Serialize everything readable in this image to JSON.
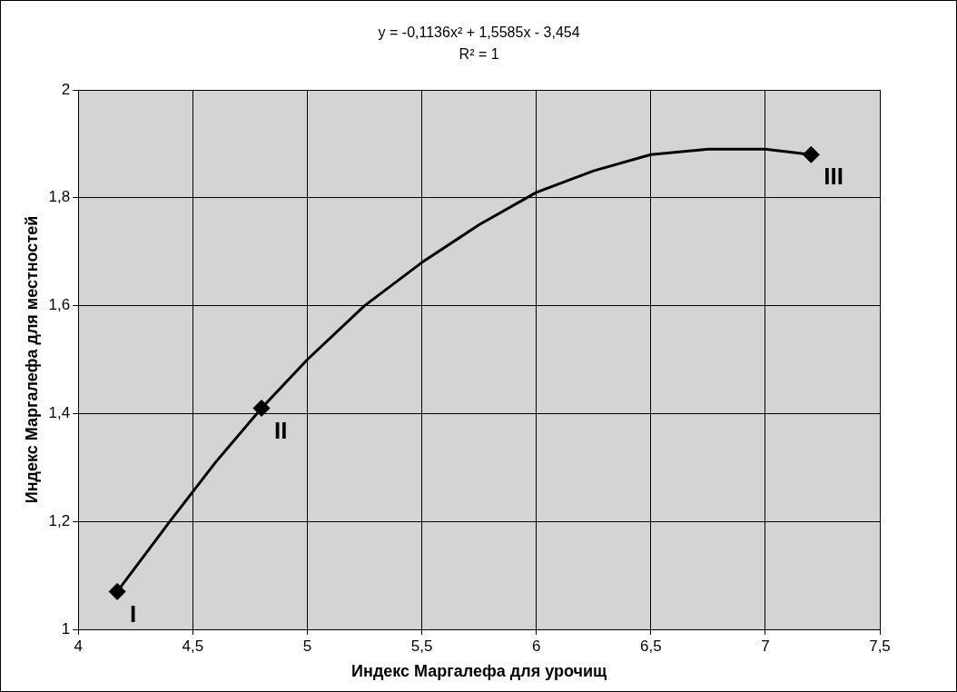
{
  "chart_data": {
    "type": "scatter",
    "xlabel": "Индекс Маргалефа для урочищ",
    "ylabel": "Индекс Маргалефа для местностей",
    "annotations": [
      "y = -0,1136x² + 1,5585x - 3,454",
      "R² = 1",
      {
        "text": "I",
        "x": 4.17,
        "y": 1.07
      },
      {
        "text": "II",
        "x": 4.8,
        "y": 1.41
      },
      {
        "text": "III",
        "x": 7.2,
        "y": 1.88
      }
    ],
    "series": [
      {
        "type": "line",
        "color": "#000000",
        "marker": "none",
        "x": [
          4.17,
          4.4,
          4.6,
          4.8,
          5.0,
          5.25,
          5.5,
          5.75,
          6.0,
          6.25,
          6.5,
          6.75,
          7.0,
          7.2
        ],
        "values": [
          1.07,
          1.2,
          1.31,
          1.41,
          1.5,
          1.6,
          1.68,
          1.75,
          1.81,
          1.85,
          1.88,
          1.89,
          1.89,
          1.88
        ]
      },
      {
        "color": "#000000",
        "marker": "diamond",
        "x": [
          4.17,
          4.8,
          7.2
        ],
        "values": [
          1.07,
          1.41,
          1.88
        ]
      }
    ],
    "xlim": [
      4,
      7.5
    ],
    "xticks": [
      4,
      {
        "value": 4.5,
        "label": "4,5"
      },
      5,
      {
        "value": 5.5,
        "label": "5,5"
      },
      6,
      {
        "value": 6.5,
        "label": "6,5"
      },
      7,
      {
        "value": 7.5,
        "label": "7,5"
      }
    ],
    "ylim": [
      1,
      2
    ],
    "yticks": [
      1,
      {
        "value": 1.2,
        "label": "1,2"
      },
      {
        "value": 1.4,
        "label": "1,4"
      },
      {
        "value": 1.6,
        "label": "1,6"
      },
      {
        "value": 1.8,
        "label": "1,8"
      },
      2
    ],
    "grid": true,
    "legend": false
  }
}
